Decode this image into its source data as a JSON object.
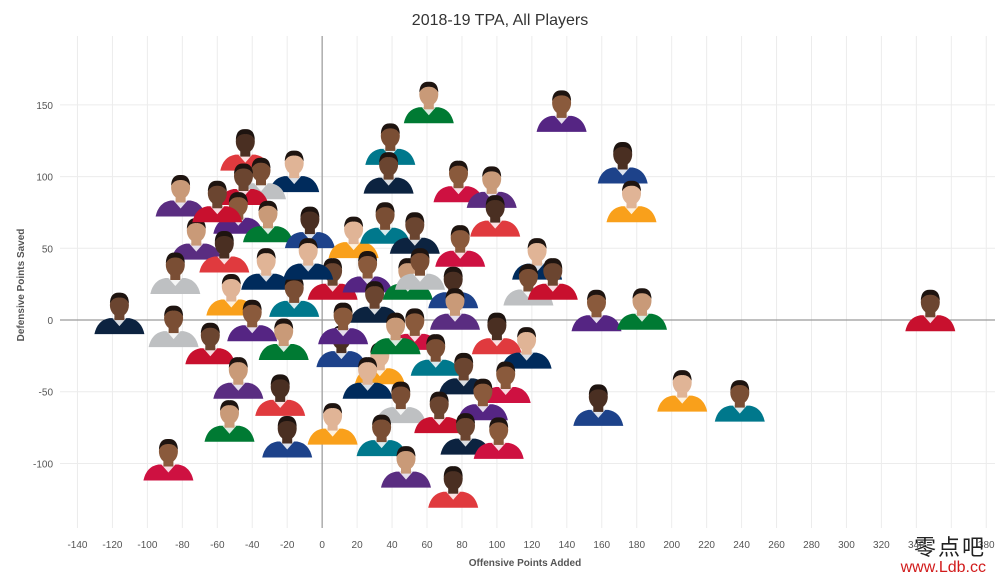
{
  "chart_data": {
    "type": "scatter",
    "title": "2018-19 TPA, All Players",
    "xlabel": "Offensive Points Added",
    "ylabel": "Defensive Points Saved",
    "xlim": [
      -150,
      385
    ],
    "ylim": [
      -145,
      198
    ],
    "x_ticks": [
      -140,
      -120,
      -100,
      -80,
      -60,
      -40,
      -20,
      0,
      20,
      40,
      60,
      80,
      100,
      120,
      140,
      160,
      180,
      200,
      220,
      240,
      260,
      280,
      300,
      320,
      340,
      360,
      380
    ],
    "x_tick_labels": [
      "-140",
      "-120",
      "-100",
      "-80",
      "-60",
      "-40",
      "-20",
      "0",
      "20",
      "40",
      "60",
      "80",
      "100",
      "120",
      "140",
      "160",
      "180",
      "200",
      "220",
      "240",
      "260",
      "280",
      "300",
      "320",
      "340",
      "",
      "380"
    ],
    "y_ticks": [
      -100,
      -50,
      0,
      50,
      100,
      150
    ],
    "y_tick_labels": [
      "-100",
      "-50",
      "0",
      "50",
      "100",
      "150"
    ],
    "grid": true,
    "marker": "player headshot",
    "points": [
      {
        "x": 348,
        "y": 4
      },
      {
        "x": 137,
        "y": 143
      },
      {
        "x": 61,
        "y": 149
      },
      {
        "x": 172,
        "y": 107
      },
      {
        "x": 177,
        "y": 80
      },
      {
        "x": 39,
        "y": 120
      },
      {
        "x": 38,
        "y": 100
      },
      {
        "x": 78,
        "y": 94
      },
      {
        "x": 97,
        "y": 90
      },
      {
        "x": 99,
        "y": 70
      },
      {
        "x": 123,
        "y": 40
      },
      {
        "x": 118,
        "y": 22
      },
      {
        "x": 132,
        "y": 26
      },
      {
        "x": 157,
        "y": 4
      },
      {
        "x": 183,
        "y": 5
      },
      {
        "x": 158,
        "y": -62
      },
      {
        "x": 206,
        "y": -52
      },
      {
        "x": 239,
        "y": -59
      },
      {
        "x": -116,
        "y": 2
      },
      {
        "x": -88,
        "y": -100
      },
      {
        "x": -81,
        "y": 84
      },
      {
        "x": -44,
        "y": 116
      },
      {
        "x": -16,
        "y": 101
      },
      {
        "x": -35,
        "y": 96
      },
      {
        "x": -45,
        "y": 92
      },
      {
        "x": -48,
        "y": 72
      },
      {
        "x": -31,
        "y": 66
      },
      {
        "x": -7,
        "y": 62
      },
      {
        "x": 18,
        "y": 55
      },
      {
        "x": 36,
        "y": 65
      },
      {
        "x": 53,
        "y": 58
      },
      {
        "x": 79,
        "y": 49
      },
      {
        "x": -72,
        "y": 54
      },
      {
        "x": -56,
        "y": 45
      },
      {
        "x": -32,
        "y": 33
      },
      {
        "x": -84,
        "y": 30
      },
      {
        "x": 6,
        "y": 26
      },
      {
        "x": 26,
        "y": 31
      },
      {
        "x": 49,
        "y": 26
      },
      {
        "x": 75,
        "y": 20
      },
      {
        "x": -52,
        "y": 15
      },
      {
        "x": -16,
        "y": 14
      },
      {
        "x": 30,
        "y": 10
      },
      {
        "x": 53,
        "y": -9
      },
      {
        "x": 76,
        "y": 5
      },
      {
        "x": 100,
        "y": -12
      },
      {
        "x": 117,
        "y": -22
      },
      {
        "x": -85,
        "y": -7
      },
      {
        "x": -64,
        "y": -19
      },
      {
        "x": -40,
        "y": -3
      },
      {
        "x": -22,
        "y": -16
      },
      {
        "x": 11,
        "y": -21
      },
      {
        "x": 33,
        "y": -33
      },
      {
        "x": 65,
        "y": -27
      },
      {
        "x": 81,
        "y": -40
      },
      {
        "x": 105,
        "y": -46
      },
      {
        "x": -48,
        "y": -43
      },
      {
        "x": -24,
        "y": -55
      },
      {
        "x": 26,
        "y": -43
      },
      {
        "x": 45,
        "y": -60
      },
      {
        "x": 67,
        "y": -67
      },
      {
        "x": 92,
        "y": -58
      },
      {
        "x": -53,
        "y": -73
      },
      {
        "x": -20,
        "y": -84
      },
      {
        "x": 6,
        "y": -75
      },
      {
        "x": 34,
        "y": -83
      },
      {
        "x": 82,
        "y": -82
      },
      {
        "x": 101,
        "y": -85
      },
      {
        "x": 48,
        "y": -105
      },
      {
        "x": 75,
        "y": -119
      },
      {
        "x": -8,
        "y": 40
      },
      {
        "x": 56,
        "y": 33
      },
      {
        "x": -60,
        "y": 80
      },
      {
        "x": 12,
        "y": -5
      },
      {
        "x": 42,
        "y": -12
      }
    ]
  },
  "watermark": {
    "site_name": "零点吧",
    "site_url": "www.Ldb.cc"
  },
  "colors": {
    "grid": "#ececec",
    "zero_line": "#9a9a9a",
    "text": "#555555",
    "title": "#333333",
    "marker_palette": [
      "#c8102e",
      "#552583",
      "#007a33",
      "#1d428a",
      "#f9a01b",
      "#00788c",
      "#0c2340",
      "#ce1141",
      "#5a2d81",
      "#e03a3e",
      "#002b5c",
      "#bec0c2"
    ]
  }
}
